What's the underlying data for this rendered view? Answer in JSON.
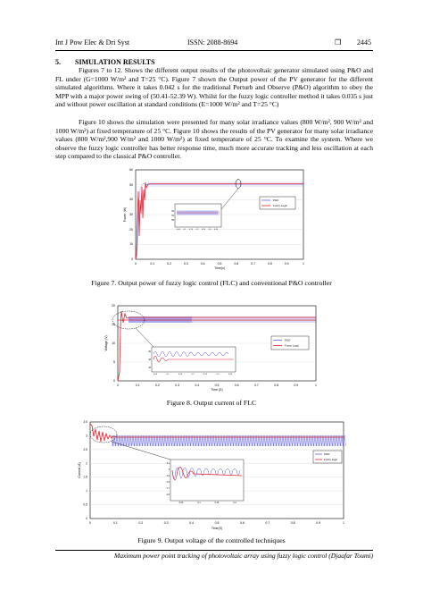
{
  "header": {
    "journal": "Int J Pow Elec & Dri Syst",
    "issn": "ISSN: 2088-8694",
    "page_number": "2445",
    "box_icon": "square-box-icon"
  },
  "section": {
    "title": "5.  SIMULATION RESULTS"
  },
  "paragraphs": [
    "Figures 7 to 12. Shows the different output results of the photovoltaic generator simulated using P&O and FL under (G=1000 W/m² and T=25 °C). Figure 7 shown the Output power of the PV generator for the different simulated algorithms. Where it takes 0.042 s for the traditional Perturb and Observe (P&O) algorithm to obey the MPP with a major power swing of (50.41-52.39 W). Whilst for the fuzzy logic controller method it takes 0.035 s just and without power oscillation at standard conditions (E=1000 W/m² and T=25 °C)",
    "Figure 10 shows the simulation were presented for many solar irradiance values (800 W/m², 900 W/m² and 1000 W/m²) at fixed temperature of 25 °C. Figure 10 shows the results of the PV generator for many solar irradiance values (800 W/m²,900 W/m² and 1000 W/m²) at fixed temperature of 25 °C. To examine the system. Where we observe the fuzzy logic controller has better response time, much more accurate tracking and less oscillation at each step compared to the classical P&O controller."
  ],
  "figures": [
    {
      "caption": "Figure 7. Output power of fuzzy logic control (FLC) and conventional P&O controller",
      "ylabel": "Power (W)",
      "xlabel": "Time(s)",
      "y_ticks": [
        "0",
        "10",
        "20",
        "30",
        "40",
        "50",
        "60"
      ],
      "x_ticks": [
        "0",
        "0.1",
        "0.2",
        "0.3",
        "0.4",
        "0.5",
        "0.6",
        "0.7",
        "0.8",
        "0.9",
        "1"
      ],
      "legend": [
        "P&O",
        "Fuzzy Logic"
      ],
      "inset_y_ticks": [
        "52",
        "51",
        "50"
      ],
      "inset_x_ticks": [
        "0.05",
        "0.1",
        "0.15",
        "0.2",
        "0.25",
        "0.3",
        "0.35"
      ]
    },
    {
      "caption": "Figure 8. Output current of FLC",
      "ylabel": "Voltage (V)",
      "xlabel": "Time (S)",
      "y_ticks": [
        "0",
        "5",
        "10",
        "15",
        "20"
      ],
      "x_ticks": [
        "0",
        "0.1",
        "0.2",
        "0.3",
        "0.4",
        "0.5",
        "0.6",
        "0.7",
        "0.8",
        "0.9",
        "1"
      ],
      "legend": [
        "P&O",
        "Fuzzy Logic"
      ],
      "inset_y_ticks": [
        "20",
        "18",
        "16"
      ],
      "inset_x_ticks": [
        "0.05",
        "0.1",
        "0.15",
        "0.2",
        "0.25",
        "0.3",
        "0.35"
      ]
    },
    {
      "caption": "Figure 9. Output voltage of the controlled techniques",
      "ylabel": "Current (A)",
      "xlabel": "Time(S)",
      "y_ticks": [
        "0",
        "0.5",
        "1",
        "1.5",
        "2",
        "2.5",
        "3",
        "3.5"
      ],
      "x_ticks": [
        "0",
        "0.1",
        "0.2",
        "0.3",
        "0.4",
        "0.5",
        "0.6",
        "0.7",
        "0.8",
        "0.9",
        "1"
      ],
      "legend": [
        "P&O",
        "Fuzzy logic"
      ],
      "inset_y_ticks": [
        "3.1",
        "3",
        "2.9",
        "2.8",
        "2.7",
        "2.6"
      ],
      "inset_x_ticks": [
        "0.05",
        "0.1",
        "0.15",
        "0.2"
      ]
    }
  ],
  "footer": {
    "text": "Maximum power point tracking of photovoltaic array using fuzzy logic control (Djaafar Toumi)"
  },
  "colors": {
    "po_series": "#2b2bd8",
    "fuzzy_series": "#e0202a",
    "grid": "#cccccc",
    "zoom_marker": "#000000"
  }
}
